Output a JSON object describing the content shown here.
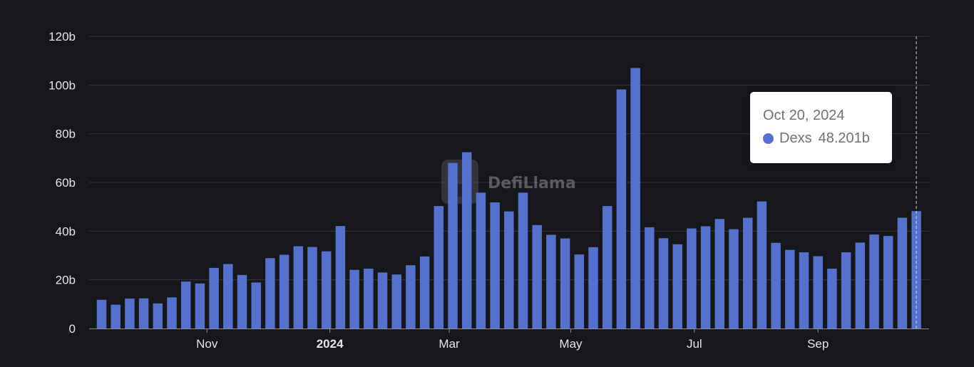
{
  "colors": {
    "background": "#16171b",
    "bar": "#5571cd",
    "grid": "#34363c",
    "text": "#e6e6e6"
  },
  "watermark": {
    "text": "DefiLlama",
    "icon": "llama-logo-icon"
  },
  "tooltip": {
    "date": "Oct 20, 2024",
    "series": "Dexs",
    "value": "48.201b"
  },
  "chart_data": {
    "type": "bar",
    "title": "",
    "xlabel": "",
    "ylabel": "",
    "unit": "b",
    "ylim": [
      0,
      120
    ],
    "y_ticks": [
      {
        "value": 0,
        "label": "0"
      },
      {
        "value": 20,
        "label": "20b"
      },
      {
        "value": 40,
        "label": "40b"
      },
      {
        "value": 60,
        "label": "60b"
      },
      {
        "value": 80,
        "label": "80b"
      },
      {
        "value": 100,
        "label": "100b"
      },
      {
        "value": 120,
        "label": "120b"
      }
    ],
    "x_ticks": [
      {
        "index": 7.5,
        "label": "Nov",
        "bold": false
      },
      {
        "index": 16.25,
        "label": "2024",
        "bold": true
      },
      {
        "index": 24.75,
        "label": "Mar",
        "bold": false
      },
      {
        "index": 33.4,
        "label": "May",
        "bold": false
      },
      {
        "index": 42.2,
        "label": "Jul",
        "bold": false
      },
      {
        "index": 51,
        "label": "Sep",
        "bold": false
      }
    ],
    "grid": true,
    "highlight_index": 58,
    "series": [
      {
        "name": "Dexs",
        "values": [
          11.8,
          9.8,
          12.3,
          12.4,
          10.3,
          12.8,
          19.3,
          18.5,
          24.9,
          26.5,
          22.0,
          18.9,
          28.9,
          30.3,
          33.8,
          33.5,
          31.7,
          42.1,
          24.1,
          24.6,
          23.0,
          22.2,
          26.0,
          29.6,
          50.3,
          68.0,
          72.4,
          55.8,
          51.8,
          48.1,
          55.8,
          42.5,
          38.5,
          37.0,
          30.4,
          33.4,
          50.3,
          98.2,
          107.0,
          41.6,
          37.1,
          34.6,
          41.1,
          42.0,
          45.0,
          40.8,
          45.5,
          52.2,
          35.2,
          32.3,
          31.3,
          29.7,
          24.6,
          31.3,
          35.3,
          38.6,
          38.0,
          45.5,
          48.201
        ]
      }
    ]
  }
}
